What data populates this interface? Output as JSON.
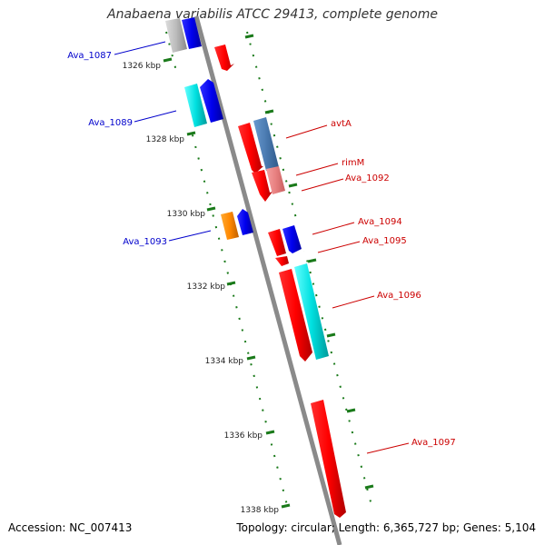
{
  "title": "Anabaena variabilis ATCC 29413, complete genome",
  "accession_label": "Accession: NC_007413",
  "summary_label": "Topology: circular; Length: 6,365,727 bp; Genes: 5,104",
  "colors": {
    "backbone": "#8a8a8a",
    "tick": "#1a7a1a",
    "label_forward": "#cc0000",
    "label_reverse": "#0000cc"
  },
  "ticks": [
    {
      "label": "1326 kbp"
    },
    {
      "label": "1328 kbp"
    },
    {
      "label": "1330 kbp"
    },
    {
      "label": "1332 kbp"
    },
    {
      "label": "1334 kbp"
    },
    {
      "label": "1336 kbp"
    },
    {
      "label": "1338 kbp"
    }
  ],
  "gene_labels": [
    {
      "text": "Ava_1087",
      "strand": "reverse"
    },
    {
      "text": "Ava_1089",
      "strand": "reverse"
    },
    {
      "text": "Ava_1093",
      "strand": "reverse"
    },
    {
      "text": "avtA",
      "strand": "forward"
    },
    {
      "text": "rimM",
      "strand": "forward"
    },
    {
      "text": "Ava_1092",
      "strand": "forward"
    },
    {
      "text": "Ava_1094",
      "strand": "forward"
    },
    {
      "text": "Ava_1095",
      "strand": "forward"
    },
    {
      "text": "Ava_1096",
      "strand": "forward"
    },
    {
      "text": "Ava_1097",
      "strand": "forward"
    }
  ]
}
